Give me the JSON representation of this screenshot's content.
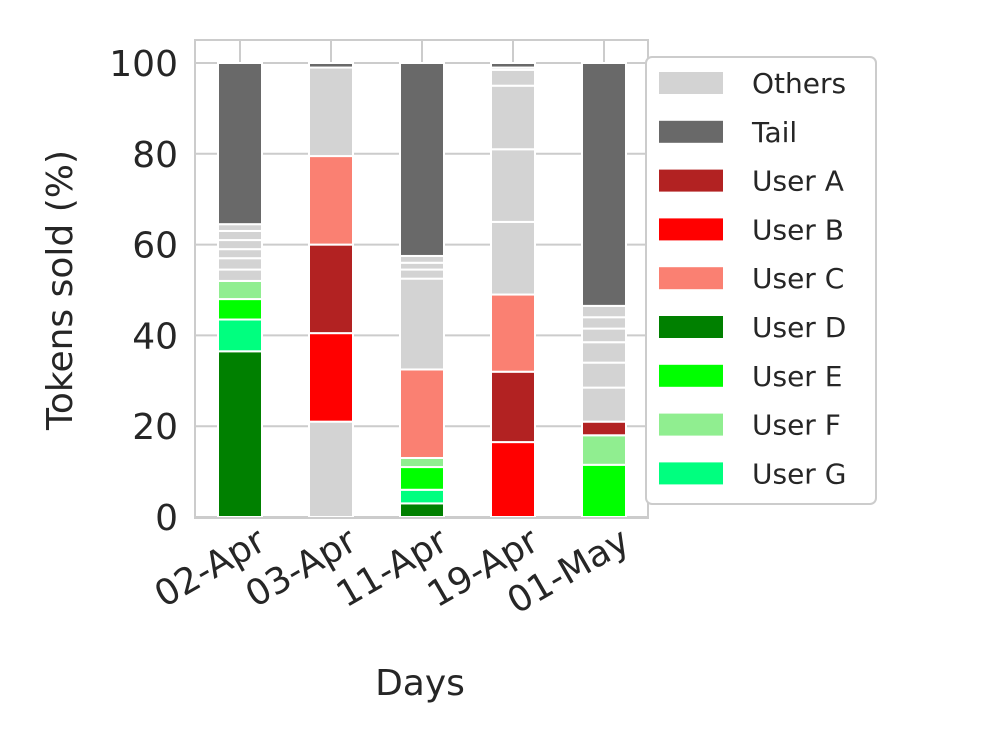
{
  "chart_data": {
    "type": "bar",
    "stacked": true,
    "xlabel": "Days",
    "ylabel": "Tokens sold (%)",
    "ylim": [
      0,
      100
    ],
    "yticks": [
      0,
      20,
      40,
      60,
      80,
      100
    ],
    "grid": true,
    "legend_position": "right",
    "categories": [
      "02-Apr",
      "03-Apr",
      "11-Apr",
      "19-Apr",
      "01-May"
    ],
    "legend": [
      {
        "name": "Others",
        "color": "#d3d3d3"
      },
      {
        "name": "Tail",
        "color": "#696969"
      },
      {
        "name": "User A",
        "color": "#b22222"
      },
      {
        "name": "User B",
        "color": "#ff0000"
      },
      {
        "name": "User C",
        "color": "#fa8072"
      },
      {
        "name": "User D",
        "color": "#008000"
      },
      {
        "name": "User E",
        "color": "#00ff00"
      },
      {
        "name": "User F",
        "color": "#90ee90"
      },
      {
        "name": "User G",
        "color": "#00ff7f"
      }
    ],
    "bars": [
      {
        "category": "02-Apr",
        "segments": [
          {
            "series": "User D",
            "value": 36.5
          },
          {
            "series": "User G",
            "value": 7
          },
          {
            "series": "User E",
            "value": 4.5
          },
          {
            "series": "User F",
            "value": 4
          },
          {
            "series": "Others",
            "value": 2.5
          },
          {
            "series": "Others",
            "value": 2.5
          },
          {
            "series": "Others",
            "value": 2
          },
          {
            "series": "Others",
            "value": 2
          },
          {
            "series": "Others",
            "value": 2
          },
          {
            "series": "Others",
            "value": 1.5
          },
          {
            "series": "Tail",
            "value": 35.5
          }
        ]
      },
      {
        "category": "03-Apr",
        "segments": [
          {
            "series": "Others",
            "value": 21
          },
          {
            "series": "User B",
            "value": 19.5
          },
          {
            "series": "User A",
            "value": 19.5
          },
          {
            "series": "User C",
            "value": 19.5
          },
          {
            "series": "Others",
            "value": 19.5
          },
          {
            "series": "Tail",
            "value": 1
          }
        ]
      },
      {
        "category": "11-Apr",
        "segments": [
          {
            "series": "User D",
            "value": 3
          },
          {
            "series": "User G",
            "value": 3
          },
          {
            "series": "User E",
            "value": 5
          },
          {
            "series": "User F",
            "value": 2
          },
          {
            "series": "User C",
            "value": 19.5
          },
          {
            "series": "Others",
            "value": 20
          },
          {
            "series": "Others",
            "value": 2
          },
          {
            "series": "Others",
            "value": 1.5
          },
          {
            "series": "Others",
            "value": 1.5
          },
          {
            "series": "Tail",
            "value": 42.5
          }
        ]
      },
      {
        "category": "19-Apr",
        "segments": [
          {
            "series": "User B",
            "value": 16.5
          },
          {
            "series": "User A",
            "value": 15.5
          },
          {
            "series": "User C",
            "value": 17
          },
          {
            "series": "Others",
            "value": 16
          },
          {
            "series": "Others",
            "value": 16
          },
          {
            "series": "Others",
            "value": 14
          },
          {
            "series": "Others",
            "value": 3.5
          },
          {
            "series": "Others",
            "value": 0.5
          },
          {
            "series": "Tail",
            "value": 1
          }
        ]
      },
      {
        "category": "01-May",
        "segments": [
          {
            "series": "User E",
            "value": 11.5
          },
          {
            "series": "User F",
            "value": 6.5
          },
          {
            "series": "User A",
            "value": 3
          },
          {
            "series": "Others",
            "value": 7.5
          },
          {
            "series": "Others",
            "value": 5.5
          },
          {
            "series": "Others",
            "value": 4.5
          },
          {
            "series": "Others",
            "value": 3
          },
          {
            "series": "Others",
            "value": 2.5
          },
          {
            "series": "Others",
            "value": 2.5
          },
          {
            "series": "Tail",
            "value": 53.5
          }
        ]
      }
    ]
  }
}
